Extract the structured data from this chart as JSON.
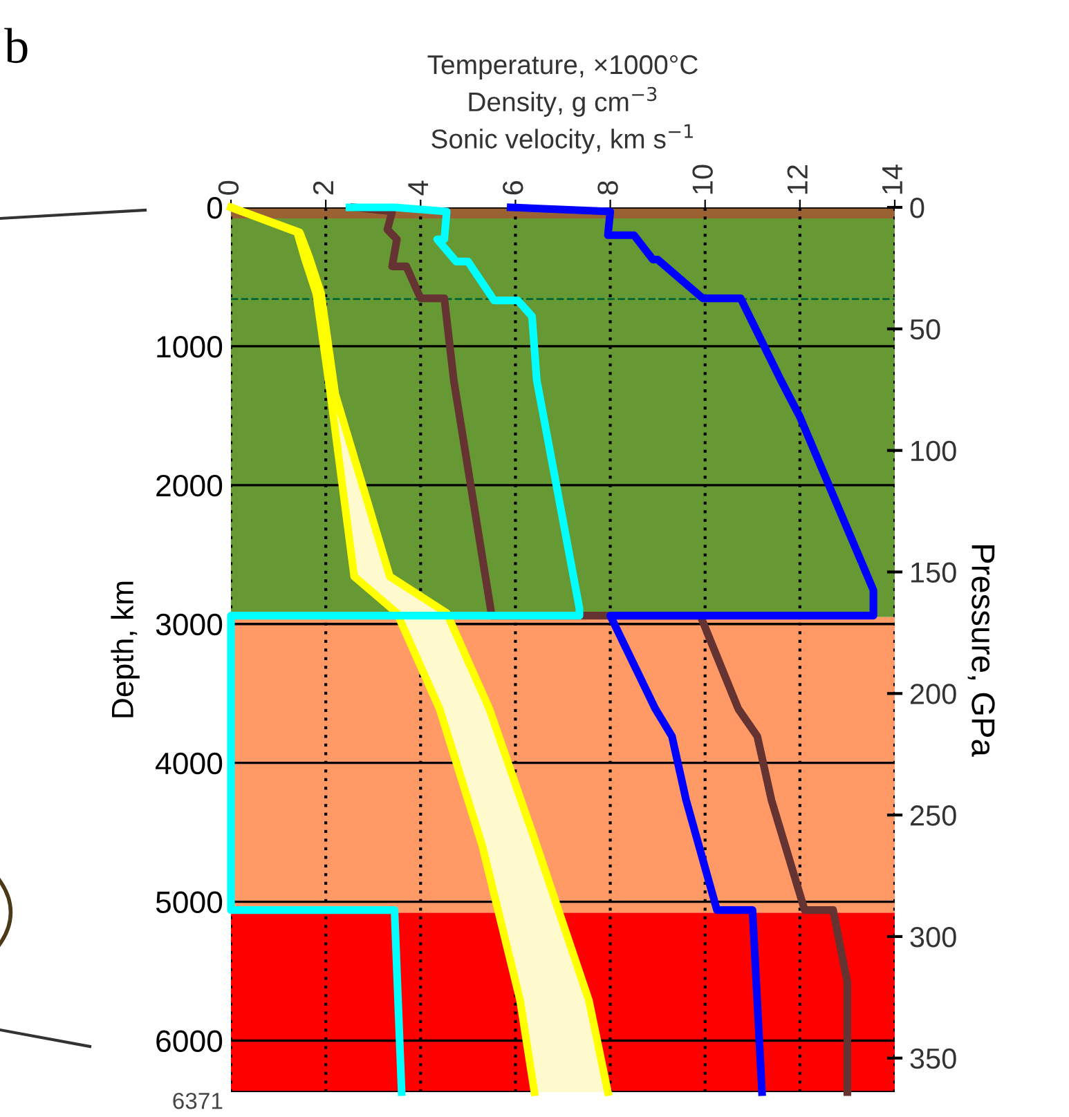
{
  "chart_data": {
    "type": "line",
    "orientation": "horizontal",
    "xlabel": "Temperature, ×1000°C\nDensity, g cm$^{−3}$\nSonic velocity, km s$^{−1}$",
    "ylabel": "Depth, km",
    "y2label": "Pressure, GPa",
    "annotations": [
      "b"
    ],
    "xlim": [
      0,
      14
    ],
    "xticks": [
      0,
      2,
      4,
      6,
      8,
      10,
      12,
      14
    ],
    "ylim": [
      6371,
      0
    ],
    "yticks": [
      0,
      1000,
      2000,
      3000,
      4000,
      5000,
      6000,
      6371
    ],
    "y2lim": [
      364,
      0
    ],
    "y2ticks": [
      0,
      50,
      100,
      150,
      200,
      250,
      300,
      350
    ],
    "grid": true,
    "bands": [
      {
        "axis": "y",
        "from": 0,
        "to": 80,
        "color": "#9a6233"
      },
      {
        "axis": "y",
        "from": 80,
        "to": 2950,
        "color": "#669933"
      },
      {
        "axis": "y",
        "from": 2950,
        "to": 5080,
        "color": "#ff9966"
      },
      {
        "axis": "y",
        "from": 5080,
        "to": 6371,
        "color": "#ff0000"
      }
    ],
    "ref_lines": [
      {
        "axis": "y",
        "value": 660,
        "color": "#006633",
        "line_style": "dashed"
      }
    ],
    "series": [
      {
        "color": "#ffff00",
        "x": [
          0,
          180,
          360,
          620,
          1345,
          2658,
          2921,
          3611,
          4596,
          5712,
          6371
        ],
        "values": [
          0,
          1.4,
          1.55,
          1.8,
          2.1,
          2.6,
          3.5,
          4.4,
          5.3,
          6.1,
          6.4
        ],
        "lower": [
          0,
          1.4,
          1.55,
          1.8,
          2.1,
          2.6,
          3.5,
          4.4,
          5.3,
          6.1,
          6.4
        ],
        "upper": [
          0,
          1.45,
          1.65,
          1.9,
          2.2,
          3.35,
          4.55,
          5.45,
          6.45,
          7.55,
          7.95
        ]
      },
      {
        "color": "#ffff00",
        "x": [
          0,
          180,
          360,
          620,
          1345,
          2658,
          2921,
          3611,
          4596,
          5712,
          6371
        ],
        "values": [
          0,
          1.45,
          1.65,
          1.9,
          2.2,
          3.35,
          4.55,
          5.45,
          6.45,
          7.55,
          7.95
        ]
      },
      {
        "color": "#663333",
        "x": [
          0,
          30,
          160,
          230,
          425,
          425,
          655,
          655,
          1246,
          2940,
          2940,
          3611,
          3808,
          4268,
          5060,
          5060,
          5581,
          6371
        ],
        "values": [
          2.6,
          3.4,
          3.3,
          3.5,
          3.4,
          3.7,
          4.0,
          4.5,
          4.7,
          5.5,
          9.9,
          10.7,
          11.1,
          11.4,
          12.1,
          12.7,
          13.0,
          13.0
        ]
      },
      {
        "color": "#00ffff",
        "x": [
          0,
          0,
          30,
          230,
          230,
          390,
          390,
          670,
          670,
          785,
          1246,
          2888,
          2940,
          2940,
          5060,
          5060,
          6371
        ],
        "values": [
          2.5,
          3.45,
          4.55,
          4.5,
          4.35,
          4.75,
          5.0,
          5.55,
          6.05,
          6.35,
          6.45,
          7.35,
          7.35,
          0,
          0,
          3.45,
          3.6
        ]
      },
      {
        "color": "#0000ff",
        "x": [
          0,
          30,
          200,
          200,
          376,
          376,
          655,
          655,
          1246,
          1509,
          2757,
          2940,
          2940,
          3611,
          3808,
          4268,
          5060,
          5060,
          6371
        ],
        "values": [
          5.9,
          8.0,
          7.95,
          8.5,
          8.9,
          9.0,
          9.95,
          10.75,
          11.6,
          12.0,
          13.55,
          13.55,
          8.0,
          8.95,
          9.3,
          9.6,
          10.25,
          11.0,
          11.2
        ]
      }
    ]
  }
}
